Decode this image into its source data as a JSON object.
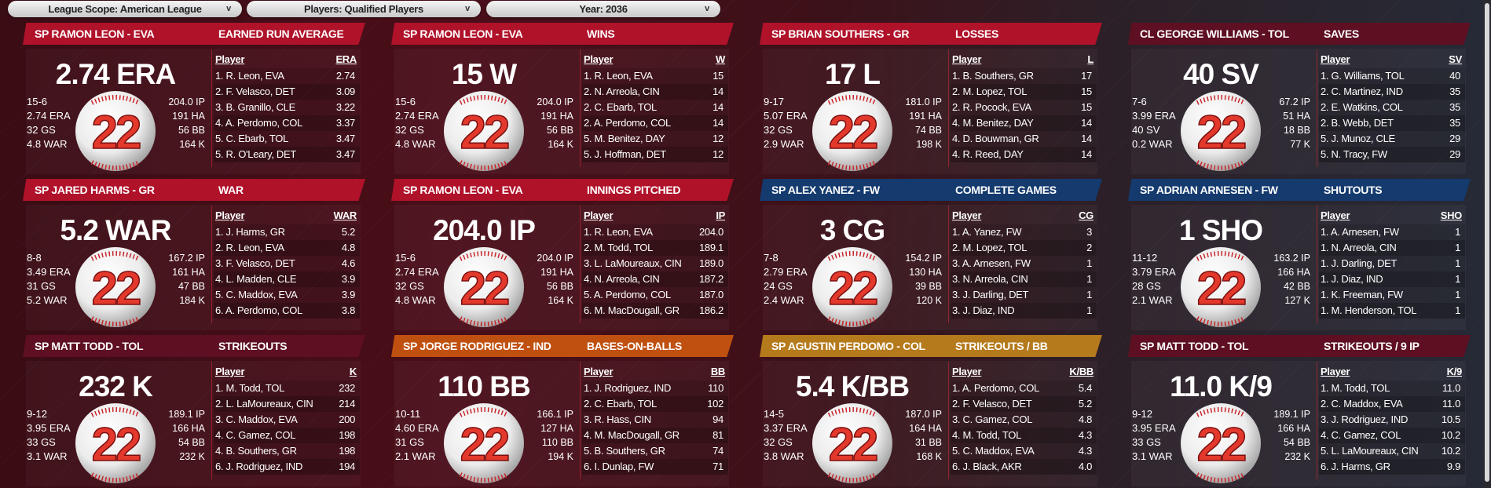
{
  "filters": [
    {
      "label": "League Scope: American League"
    },
    {
      "label": "Players: Qualified Players"
    },
    {
      "label": "Year: 2036"
    }
  ],
  "chevron_icon": "chevron-down-icon",
  "colors": {
    "red": "#b0122a",
    "maroon": "#5e0f22",
    "blue": "#143a6e",
    "orange": "#c0500f",
    "gold": "#b57a1c"
  },
  "cards": [
    {
      "color": "red",
      "player": "SP RAMON LEON - EVA",
      "title": "EARNED RUN AVERAGE",
      "big": "2.74 ERA",
      "jersey": "22",
      "left": [
        "15-6",
        "2.74 ERA",
        "32 GS",
        "4.8 WAR"
      ],
      "right": [
        "204.0 IP",
        "191 HA",
        "56 BB",
        "164 K"
      ],
      "col": "ERA",
      "rows": [
        [
          "1. R. Leon, EVA",
          "2.74"
        ],
        [
          "2. F. Velasco, DET",
          "3.09"
        ],
        [
          "3. B. Granillo, CLE",
          "3.22"
        ],
        [
          "4. A. Perdomo, COL",
          "3.37"
        ],
        [
          "5. C. Ebarb, TOL",
          "3.47"
        ],
        [
          "5. R. O'Leary, DET",
          "3.47"
        ]
      ]
    },
    {
      "color": "red",
      "player": "SP RAMON LEON - EVA",
      "title": "WINS",
      "big": "15 W",
      "jersey": "22",
      "left": [
        "15-6",
        "2.74 ERA",
        "32 GS",
        "4.8 WAR"
      ],
      "right": [
        "204.0 IP",
        "191 HA",
        "56 BB",
        "164 K"
      ],
      "col": "W",
      "rows": [
        [
          "1. R. Leon, EVA",
          "15"
        ],
        [
          "2. N. Arreola, CIN",
          "14"
        ],
        [
          "2. C. Ebarb, TOL",
          "14"
        ],
        [
          "2. A. Perdomo, COL",
          "14"
        ],
        [
          "5. M. Benitez, DAY",
          "12"
        ],
        [
          "5. J. Hoffman, DET",
          "12"
        ]
      ]
    },
    {
      "color": "red",
      "player": "SP BRIAN SOUTHERS - GR",
      "title": "LOSSES",
      "big": "17 L",
      "jersey": "22",
      "left": [
        "9-17",
        "5.07 ERA",
        "32 GS",
        "2.9 WAR"
      ],
      "right": [
        "181.0 IP",
        "191 HA",
        "74 BB",
        "198 K"
      ],
      "col": "L",
      "rows": [
        [
          "1. B. Southers, GR",
          "17"
        ],
        [
          "2. M. Lopez, TOL",
          "15"
        ],
        [
          "2. R. Pocock, EVA",
          "15"
        ],
        [
          "4. M. Benitez, DAY",
          "14"
        ],
        [
          "4. D. Bouwman, GR",
          "14"
        ],
        [
          "4. R. Reed, DAY",
          "14"
        ]
      ]
    },
    {
      "color": "maroon",
      "player": "CL GEORGE WILLIAMS - TOL",
      "title": "SAVES",
      "big": "40 SV",
      "jersey": "22",
      "left": [
        "7-6",
        "3.99 ERA",
        "40 SV",
        "0.2 WAR"
      ],
      "right": [
        "67.2 IP",
        "51 HA",
        "18 BB",
        "77 K"
      ],
      "col": "SV",
      "rows": [
        [
          "1. G. Williams, TOL",
          "40"
        ],
        [
          "2. C. Martinez, IND",
          "35"
        ],
        [
          "2. E. Watkins, COL",
          "35"
        ],
        [
          "2. B. Webb, DET",
          "35"
        ],
        [
          "5. J. Munoz, CLE",
          "29"
        ],
        [
          "5. N. Tracy, FW",
          "29"
        ]
      ]
    },
    {
      "color": "red",
      "player": "SP JARED HARMS - GR",
      "title": "WAR",
      "big": "5.2 WAR",
      "jersey": "22",
      "left": [
        "8-8",
        "3.49 ERA",
        "31 GS",
        "5.2 WAR"
      ],
      "right": [
        "167.2 IP",
        "161 HA",
        "47 BB",
        "184 K"
      ],
      "col": "WAR",
      "rows": [
        [
          "1. J. Harms, GR",
          "5.2"
        ],
        [
          "2. R. Leon, EVA",
          "4.8"
        ],
        [
          "3. F. Velasco, DET",
          "4.6"
        ],
        [
          "4. L. Madden, CLE",
          "3.9"
        ],
        [
          "5. C. Maddox, EVA",
          "3.9"
        ],
        [
          "6. A. Perdomo, COL",
          "3.8"
        ]
      ]
    },
    {
      "color": "red",
      "player": "SP RAMON LEON - EVA",
      "title": "INNINGS PITCHED",
      "big": "204.0 IP",
      "jersey": "22",
      "left": [
        "15-6",
        "2.74 ERA",
        "32 GS",
        "4.8 WAR"
      ],
      "right": [
        "204.0 IP",
        "191 HA",
        "56 BB",
        "164 K"
      ],
      "col": "IP",
      "rows": [
        [
          "1. R. Leon, EVA",
          "204.0"
        ],
        [
          "2. M. Todd, TOL",
          "189.1"
        ],
        [
          "3. L. LaMoureaux, CIN",
          "189.0"
        ],
        [
          "4. N. Arreola, CIN",
          "187.2"
        ],
        [
          "5. A. Perdomo, COL",
          "187.0"
        ],
        [
          "6. M. MacDougall, GR",
          "186.2"
        ]
      ]
    },
    {
      "color": "blue",
      "player": "SP ALEX YANEZ - FW",
      "title": "COMPLETE GAMES",
      "big": "3 CG",
      "jersey": "22",
      "left": [
        "7-8",
        "2.79 ERA",
        "24 GS",
        "2.4 WAR"
      ],
      "right": [
        "154.2 IP",
        "130 HA",
        "39 BB",
        "120 K"
      ],
      "col": "CG",
      "rows": [
        [
          "1. A. Yanez, FW",
          "3"
        ],
        [
          "2. M. Lopez, TOL",
          "2"
        ],
        [
          "3. A. Arnesen, FW",
          "1"
        ],
        [
          "3. N. Arreola, CIN",
          "1"
        ],
        [
          "3. J. Darling, DET",
          "1"
        ],
        [
          "3. J. Diaz, IND",
          "1"
        ]
      ]
    },
    {
      "color": "blue",
      "player": "SP ADRIAN ARNESEN - FW",
      "title": "SHUTOUTS",
      "big": "1 SHO",
      "jersey": "22",
      "left": [
        "11-12",
        "3.79 ERA",
        "28 GS",
        "2.1 WAR"
      ],
      "right": [
        "163.2 IP",
        "166 HA",
        "42 BB",
        "127 K"
      ],
      "col": "SHO",
      "rows": [
        [
          "1. A. Arnesen, FW",
          "1"
        ],
        [
          "1. N. Arreola, CIN",
          "1"
        ],
        [
          "1. J. Darling, DET",
          "1"
        ],
        [
          "1. J. Diaz, IND",
          "1"
        ],
        [
          "1. K. Freeman, FW",
          "1"
        ],
        [
          "1. M. Henderson, TOL",
          "1"
        ]
      ]
    },
    {
      "color": "maroon",
      "player": "SP MATT TODD - TOL",
      "title": "STRIKEOUTS",
      "big": "232 K",
      "jersey": "22",
      "left": [
        "9-12",
        "3.95 ERA",
        "33 GS",
        "3.1 WAR"
      ],
      "right": [
        "189.1 IP",
        "166 HA",
        "54 BB",
        "232 K"
      ],
      "col": "K",
      "rows": [
        [
          "1. M. Todd, TOL",
          "232"
        ],
        [
          "2. L. LaMoureaux, CIN",
          "214"
        ],
        [
          "3. C. Maddox, EVA",
          "200"
        ],
        [
          "4. C. Gamez, COL",
          "198"
        ],
        [
          "4. B. Southers, GR",
          "198"
        ],
        [
          "6. J. Rodriguez, IND",
          "194"
        ]
      ]
    },
    {
      "color": "orange",
      "player": "SP JORGE RODRIGUEZ - IND",
      "title": "BASES-ON-BALLS",
      "big": "110 BB",
      "jersey": "22",
      "left": [
        "10-11",
        "4.60 ERA",
        "31 GS",
        "2.1 WAR"
      ],
      "right": [
        "166.1 IP",
        "127 HA",
        "110 BB",
        "194 K"
      ],
      "col": "BB",
      "rows": [
        [
          "1. J. Rodriguez, IND",
          "110"
        ],
        [
          "2. C. Ebarb, TOL",
          "102"
        ],
        [
          "3. R. Hass, CIN",
          "94"
        ],
        [
          "4. M. MacDougall, GR",
          "81"
        ],
        [
          "5. B. Southers, GR",
          "74"
        ],
        [
          "6. I. Dunlap, FW",
          "71"
        ]
      ]
    },
    {
      "color": "gold",
      "player": "SP AGUSTIN PERDOMO - COL",
      "title": "STRIKEOUTS / BB",
      "big": "5.4 K/BB",
      "jersey": "22",
      "left": [
        "14-5",
        "3.37 ERA",
        "32 GS",
        "3.8 WAR"
      ],
      "right": [
        "187.0 IP",
        "164 HA",
        "31 BB",
        "168 K"
      ],
      "col": "K/BB",
      "rows": [
        [
          "1. A. Perdomo, COL",
          "5.4"
        ],
        [
          "2. F. Velasco, DET",
          "5.2"
        ],
        [
          "3. C. Gamez, COL",
          "4.8"
        ],
        [
          "4. M. Todd, TOL",
          "4.3"
        ],
        [
          "5. C. Maddox, EVA",
          "4.3"
        ],
        [
          "6. J. Black, AKR",
          "4.0"
        ]
      ]
    },
    {
      "color": "maroon",
      "player": "SP MATT TODD - TOL",
      "title": "STRIKEOUTS / 9 IP",
      "big": "11.0 K/9",
      "jersey": "22",
      "left": [
        "9-12",
        "3.95 ERA",
        "33 GS",
        "3.1 WAR"
      ],
      "right": [
        "189.1 IP",
        "166 HA",
        "54 BB",
        "232 K"
      ],
      "col": "K/9",
      "rows": [
        [
          "1. M. Todd, TOL",
          "11.0"
        ],
        [
          "2. C. Maddox, EVA",
          "11.0"
        ],
        [
          "3. J. Rodriguez, IND",
          "10.5"
        ],
        [
          "4. C. Gamez, COL",
          "10.2"
        ],
        [
          "5. L. LaMoureaux, CIN",
          "10.2"
        ],
        [
          "6. J. Harms, GR",
          "9.9"
        ]
      ]
    }
  ],
  "table_player_header": "Player"
}
